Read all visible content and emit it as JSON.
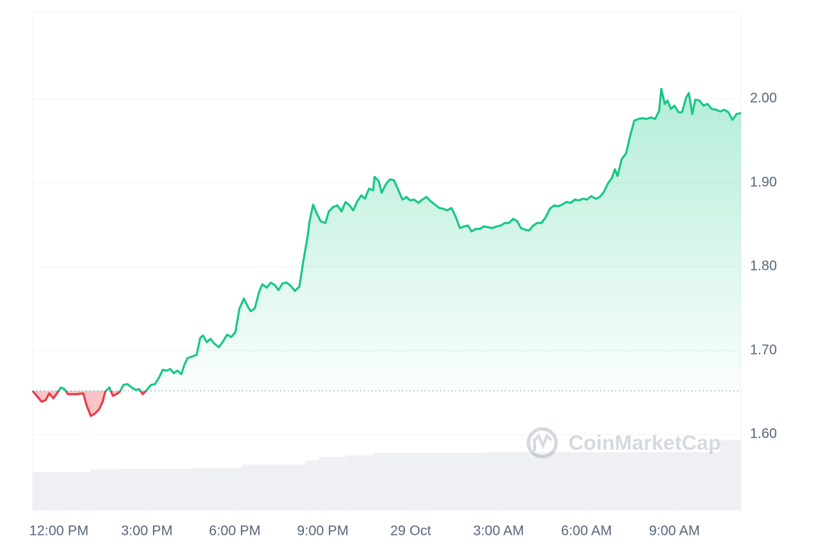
{
  "chart_data": {
    "type": "line",
    "color": "#16c784",
    "down_color": "#ea3943",
    "grid": true,
    "watermark": "CoinMarketCap",
    "xlim": [
      -0.9,
      23.27
    ],
    "ylim": [
      1.51,
      2.103
    ],
    "xticks": [
      {
        "value": 0,
        "label": "12:00 PM"
      },
      {
        "value": 3,
        "label": "3:00 PM"
      },
      {
        "value": 6,
        "label": "6:00 PM"
      },
      {
        "value": 9,
        "label": "9:00 PM"
      },
      {
        "value": 12,
        "label": "29 Oct"
      },
      {
        "value": 15,
        "label": "3:00 AM"
      },
      {
        "value": 18,
        "label": "6:00 AM"
      },
      {
        "value": 21,
        "label": "9:00 AM"
      }
    ],
    "yticks": [
      {
        "value": 1.6,
        "label": "1.60"
      },
      {
        "value": 1.7,
        "label": "1.70"
      },
      {
        "value": 1.8,
        "label": "1.80"
      },
      {
        "value": 1.9,
        "label": "1.90"
      },
      {
        "value": 2.0,
        "label": "2.00"
      }
    ],
    "x": [
      -0.9,
      -0.71,
      -0.59,
      -0.45,
      -0.33,
      -0.19,
      -0.07,
      0.07,
      0.19,
      0.31,
      0.59,
      0.83,
      0.94,
      1.09,
      1.23,
      1.37,
      1.49,
      1.58,
      1.72,
      1.84,
      1.96,
      2.08,
      2.2,
      2.34,
      2.48,
      2.62,
      2.74,
      2.86,
      3.0,
      3.14,
      3.28,
      3.42,
      3.54,
      3.68,
      3.8,
      3.92,
      4.04,
      4.18,
      4.28,
      4.39,
      4.56,
      4.7,
      4.82,
      4.91,
      5.05,
      5.17,
      5.31,
      5.46,
      5.6,
      5.74,
      5.88,
      6.02,
      6.16,
      6.31,
      6.45,
      6.54,
      6.68,
      6.83,
      6.94,
      7.09,
      7.23,
      7.37,
      7.49,
      7.63,
      7.77,
      7.91,
      8.05,
      8.2,
      8.34,
      8.48,
      8.55,
      8.67,
      8.79,
      8.93,
      9.09,
      9.21,
      9.35,
      9.5,
      9.64,
      9.78,
      9.92,
      10.04,
      10.18,
      10.32,
      10.44,
      10.58,
      10.72,
      10.77,
      10.91,
      11.01,
      11.15,
      11.29,
      11.43,
      11.57,
      11.72,
      11.86,
      11.98,
      12.12,
      12.26,
      12.4,
      12.54,
      12.68,
      12.83,
      12.97,
      13.11,
      13.25,
      13.39,
      13.53,
      13.68,
      13.82,
      13.96,
      14.08,
      14.22,
      14.36,
      14.5,
      14.64,
      14.78,
      14.93,
      15.07,
      15.21,
      15.35,
      15.5,
      15.64,
      15.76,
      15.9,
      16.04,
      16.18,
      16.32,
      16.46,
      16.61,
      16.75,
      16.89,
      17.03,
      17.17,
      17.31,
      17.46,
      17.6,
      17.74,
      17.88,
      18.02,
      18.16,
      18.31,
      18.45,
      18.59,
      18.73,
      18.87,
      18.97,
      19.06,
      19.2,
      19.35,
      19.49,
      19.63,
      19.77,
      19.91,
      20.05,
      20.2,
      20.34,
      20.48,
      20.55,
      20.67,
      20.76,
      20.88,
      21.0,
      21.14,
      21.26,
      21.4,
      21.49,
      21.61,
      21.71,
      21.85,
      21.99,
      22.13,
      22.27,
      22.42,
      22.56,
      22.7,
      22.84,
      22.98,
      23.12,
      23.27
    ],
    "values": [
      1.652,
      1.644,
      1.639,
      1.641,
      1.649,
      1.643,
      1.649,
      1.656,
      1.654,
      1.648,
      1.648,
      1.649,
      1.635,
      1.622,
      1.625,
      1.63,
      1.639,
      1.651,
      1.656,
      1.646,
      1.648,
      1.651,
      1.659,
      1.66,
      1.656,
      1.653,
      1.654,
      1.648,
      1.653,
      1.659,
      1.66,
      1.668,
      1.677,
      1.676,
      1.678,
      1.673,
      1.676,
      1.672,
      1.683,
      1.691,
      1.693,
      1.695,
      1.715,
      1.718,
      1.71,
      1.714,
      1.708,
      1.704,
      1.711,
      1.719,
      1.716,
      1.722,
      1.75,
      1.762,
      1.752,
      1.747,
      1.75,
      1.77,
      1.779,
      1.775,
      1.781,
      1.778,
      1.772,
      1.78,
      1.781,
      1.777,
      1.771,
      1.776,
      1.807,
      1.835,
      1.854,
      1.874,
      1.864,
      1.854,
      1.852,
      1.866,
      1.871,
      1.873,
      1.866,
      1.877,
      1.873,
      1.867,
      1.878,
      1.885,
      1.881,
      1.893,
      1.891,
      1.907,
      1.902,
      1.888,
      1.898,
      1.904,
      1.903,
      1.892,
      1.88,
      1.883,
      1.879,
      1.88,
      1.876,
      1.88,
      1.883,
      1.878,
      1.874,
      1.87,
      1.869,
      1.867,
      1.87,
      1.86,
      1.846,
      1.848,
      1.849,
      1.842,
      1.845,
      1.845,
      1.848,
      1.847,
      1.846,
      1.848,
      1.849,
      1.852,
      1.852,
      1.857,
      1.854,
      1.846,
      1.844,
      1.843,
      1.849,
      1.852,
      1.852,
      1.859,
      1.869,
      1.873,
      1.872,
      1.874,
      1.877,
      1.876,
      1.88,
      1.879,
      1.881,
      1.88,
      1.884,
      1.881,
      1.883,
      1.889,
      1.899,
      1.906,
      1.916,
      1.908,
      1.928,
      1.935,
      1.956,
      1.974,
      1.976,
      1.977,
      1.976,
      1.978,
      1.976,
      1.986,
      2.012,
      1.994,
      1.998,
      1.988,
      1.992,
      1.984,
      1.984,
      2.002,
      2.007,
      1.982,
      1.999,
      1.998,
      1.992,
      1.994,
      1.988,
      1.987,
      1.985,
      1.987,
      1.984,
      1.975,
      1.982,
      1.983
    ],
    "volume": {
      "color": "#eef0f3",
      "x": [
        -0.9,
        1.06,
        1.89,
        4.61,
        6.26,
        8.39,
        8.86,
        9.8,
        10.75,
        14.53,
        22.56
      ],
      "values": [
        1.555,
        1.558,
        1.559,
        1.56,
        1.564,
        1.569,
        1.573,
        1.575,
        1.578,
        1.579,
        1.593
      ]
    }
  }
}
